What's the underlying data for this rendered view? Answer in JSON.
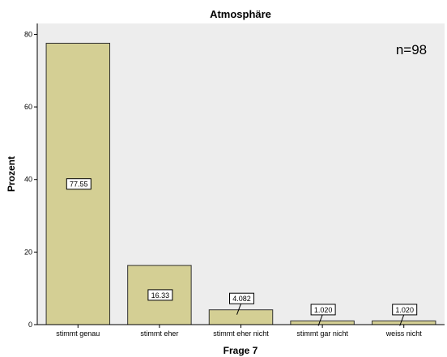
{
  "chart_data": {
    "type": "bar",
    "title": "Atmosphäre",
    "xlabel": "Frage 7",
    "ylabel": "Prozent",
    "categories": [
      "stimmt genau",
      "stimmt eher",
      "stimmt eher nicht",
      "stimmt gar nicht",
      "weiss nicht"
    ],
    "values": [
      77.55,
      16.33,
      4.082,
      1.02,
      1.02
    ],
    "data_labels": [
      "77.55",
      "16.33",
      "4.082",
      "1.020",
      "1.020"
    ],
    "ylim": [
      0,
      83
    ],
    "yticks": [
      0,
      20,
      40,
      60,
      80
    ],
    "annotation": "n=98",
    "grid": false,
    "colors": {
      "bar_fill": "#D4CF94",
      "bar_stroke": "#333333",
      "plot_background": "#EDEDED",
      "page_background": "#FFFFFF"
    }
  }
}
